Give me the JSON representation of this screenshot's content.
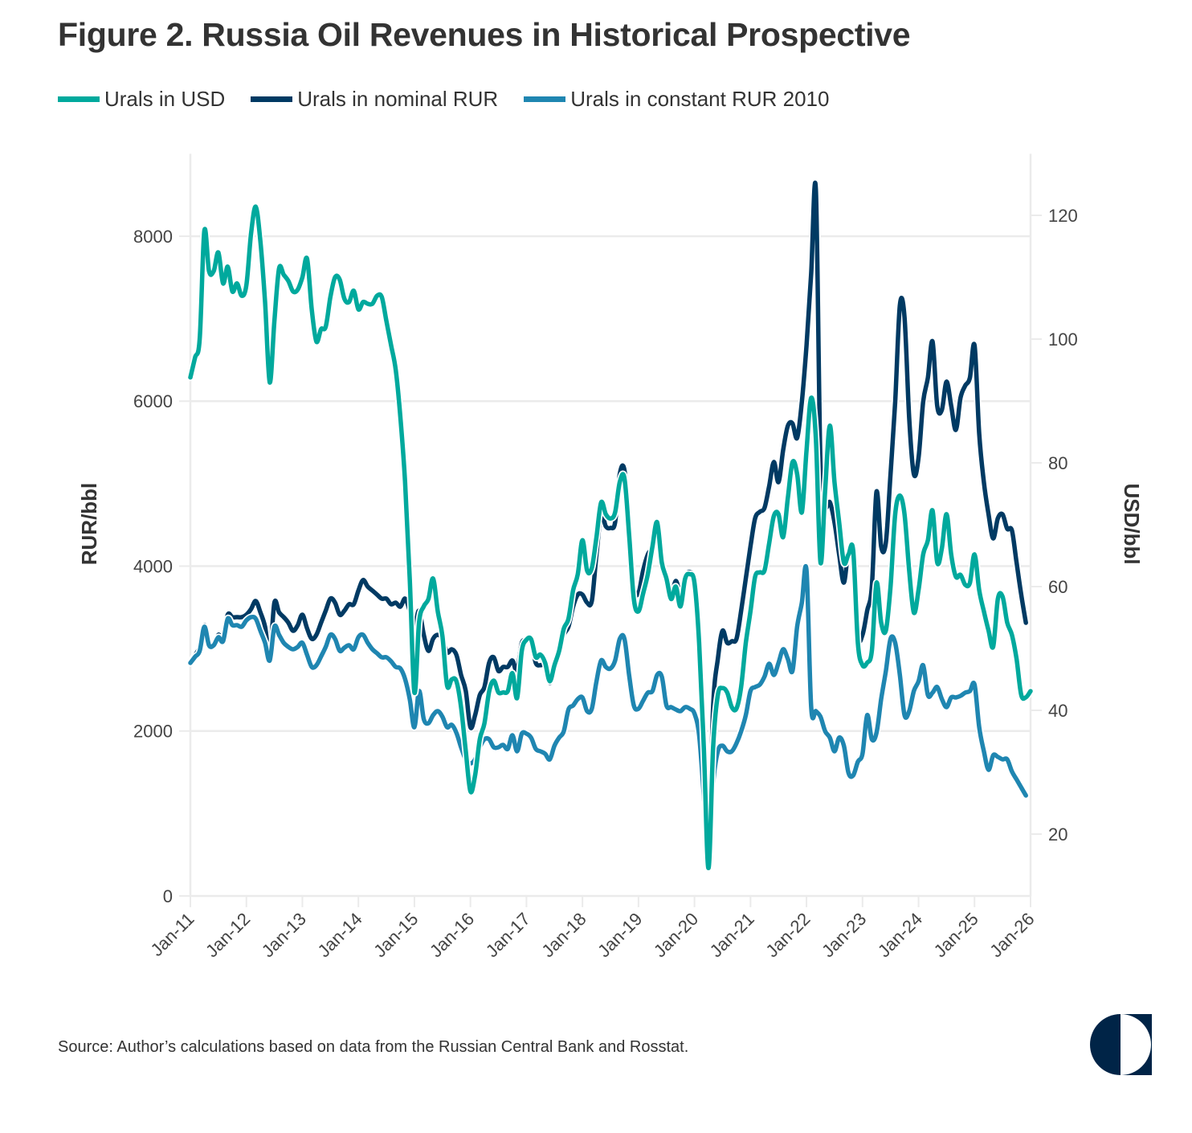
{
  "title": "Figure 2. Russia Oil Revenues in Historical Prospective",
  "source": "Source: Author’s calculations based on data from the Russian Central Bank and Rosstat.",
  "logo": {
    "icon": "half-circle-logo-icon",
    "color": "#002447"
  },
  "chart_data": {
    "type": "line",
    "title": "Figure 2. Russia Oil Revenues in Historical Prospective",
    "xlabel": "",
    "ylabel": "RUR/bbl",
    "ylabel_right": "USD/bbl",
    "ylim": [
      0,
      9000
    ],
    "ylim_right": [
      10,
      128
    ],
    "yticks": [
      0,
      2000,
      4000,
      6000,
      8000
    ],
    "yticks_right": [
      20,
      40,
      60,
      80,
      100,
      120
    ],
    "x_start": "2011-01",
    "x_end": "2026-01",
    "xticks": [
      "Jan-11",
      "Jan-12",
      "Jan-13",
      "Jan-14",
      "Jan-15",
      "Jan-16",
      "Jan-17",
      "Jan-18",
      "Jan-19",
      "Jan-20",
      "Jan-21",
      "Jan-22",
      "Jan-23",
      "Jan-24",
      "Jan-25",
      "Jan-26"
    ],
    "grid": true,
    "legend_position": "top-left",
    "series": [
      {
        "name": "Urals in nominal RUR",
        "axis": "left",
        "color": "#003a63",
        "start": "2011-01",
        "values": [
          2826,
          2920,
          3020,
          3284,
          3069,
          3020,
          3167,
          3118,
          3410,
          3381,
          3381,
          3381,
          3410,
          3478,
          3576,
          3440,
          3264,
          2923,
          3556,
          3440,
          3381,
          3313,
          3215,
          3284,
          3410,
          3245,
          3118,
          3167,
          3313,
          3459,
          3605,
          3556,
          3410,
          3459,
          3537,
          3537,
          3703,
          3830,
          3751,
          3703,
          3654,
          3605,
          3605,
          3537,
          3556,
          3508,
          3605,
          3459,
          3264,
          3459,
          3167,
          2972,
          3118,
          3167,
          3118,
          2952,
          2991,
          2923,
          2680,
          2485,
          2046,
          2192,
          2436,
          2533,
          2826,
          2894,
          2728,
          2777,
          2777,
          2855,
          2728,
          3069,
          3089,
          3089,
          2826,
          2797,
          2797,
          2582,
          2777,
          2952,
          3167,
          3264,
          3508,
          3654,
          3654,
          3556,
          3576,
          4141,
          4628,
          4482,
          4463,
          4531,
          5116,
          5164,
          4531,
          3751,
          3673,
          3946,
          4141,
          4239,
          4531,
          4044,
          3897,
          3654,
          3820,
          3673,
          3868,
          3927,
          3800,
          3069,
          1705,
          438,
          2290,
          2874,
          3215,
          3069,
          3089,
          3118,
          3459,
          3849,
          4239,
          4580,
          4658,
          4706,
          4969,
          5262,
          5018,
          5408,
          5700,
          5729,
          5554,
          5992,
          6675,
          7551,
          8565,
          5213,
          4726,
          4774,
          4531,
          4141,
          3800,
          4190,
          4141,
          3167,
          3167,
          3459,
          3751,
          4901,
          4239,
          4287,
          5116,
          5992,
          7162,
          7016,
          5798,
          5116,
          5310,
          5992,
          6285,
          6723,
          5944,
          5895,
          6236,
          5944,
          5651,
          6041,
          6187,
          6285,
          6675,
          5603,
          5018,
          4628,
          4336,
          4580,
          4628,
          4453,
          4433,
          4044,
          3654,
          3313
        ]
      },
      {
        "name": "Urals in constant RUR 2010",
        "axis": "left",
        "color": "#1f86b1",
        "start": "2011-01",
        "values": [
          2826,
          2900,
          2972,
          3264,
          3040,
          3040,
          3137,
          3089,
          3362,
          3284,
          3284,
          3264,
          3342,
          3381,
          3362,
          3215,
          3069,
          2855,
          3264,
          3167,
          3069,
          3020,
          2991,
          3020,
          3069,
          2923,
          2777,
          2797,
          2904,
          3020,
          3167,
          3118,
          2972,
          3011,
          3040,
          2991,
          3137,
          3167,
          3069,
          2991,
          2943,
          2894,
          2894,
          2845,
          2777,
          2758,
          2631,
          2387,
          2046,
          2485,
          2144,
          2095,
          2192,
          2241,
          2173,
          2046,
          2075,
          1978,
          1803,
          1656,
          1608,
          1656,
          1803,
          1900,
          1900,
          1803,
          1803,
          1832,
          1783,
          1949,
          1754,
          1968,
          1968,
          1920,
          1783,
          1754,
          1725,
          1656,
          1822,
          1920,
          1997,
          2261,
          2309,
          2387,
          2407,
          2241,
          2270,
          2602,
          2855,
          2777,
          2758,
          2855,
          3118,
          3118,
          2680,
          2309,
          2270,
          2368,
          2465,
          2485,
          2680,
          2660,
          2309,
          2290,
          2261,
          2241,
          2290,
          2270,
          2212,
          1949,
          1218,
          487,
          1364,
          1754,
          1822,
          1754,
          1754,
          1851,
          1997,
          2192,
          2485,
          2533,
          2563,
          2660,
          2816,
          2680,
          2826,
          2991,
          2874,
          2728,
          3264,
          3556,
          3946,
          2290,
          2241,
          2173,
          1997,
          1920,
          1754,
          1920,
          1822,
          1491,
          1462,
          1627,
          1725,
          2192,
          1900,
          1978,
          2387,
          2728,
          3118,
          3069,
          2680,
          2192,
          2241,
          2485,
          2602,
          2797,
          2436,
          2465,
          2533,
          2387,
          2290,
          2407,
          2407,
          2426,
          2465,
          2485,
          2563,
          2046,
          1754,
          1530,
          1705,
          1686,
          1656,
          1656,
          1510,
          1413,
          1315,
          1218
        ]
      },
      {
        "name": "Urals in USD",
        "axis": "right",
        "color": "#00a99d",
        "start": "2011-01",
        "values": [
          93.8,
          97,
          100,
          117.5,
          111,
          111,
          114,
          109,
          111.7,
          107.7,
          109,
          107,
          108.7,
          117,
          121.4,
          115.8,
          106,
          93,
          102.9,
          111.4,
          110.4,
          109.4,
          107.7,
          108,
          110,
          113,
          104.8,
          99.6,
          101.6,
          102,
          106.8,
          110,
          109.6,
          106.5,
          106,
          107.8,
          104.8,
          106,
          105.7,
          105.7,
          107,
          106.8,
          102.9,
          99,
          95,
          87.3,
          76.9,
          61.3,
          42.9,
          54.2,
          56.8,
          58,
          61.3,
          56,
          52,
          44,
          45,
          44.7,
          40.5,
          33.4,
          26.9,
          29.5,
          35.3,
          37.9,
          43,
          44.8,
          42.9,
          42.9,
          43.1,
          46,
          42,
          49.6,
          51.4,
          51.5,
          48.6,
          49,
          47.7,
          44.7,
          47.3,
          49.6,
          53.2,
          54.8,
          59.4,
          62,
          67.5,
          62.6,
          63,
          68,
          73.6,
          71.7,
          71,
          72,
          76.9,
          77.5,
          68.4,
          58,
          56,
          58.9,
          62,
          66.5,
          70.4,
          63.9,
          61.3,
          58,
          60,
          56.8,
          61.3,
          62,
          60.6,
          50.9,
          34,
          14.5,
          34,
          42.5,
          43.6,
          42.9,
          40.5,
          40.3,
          43.8,
          50.9,
          56,
          61.6,
          62.3,
          62.6,
          67,
          71.4,
          71.7,
          68,
          74.3,
          80.1,
          78.2,
          72,
          82,
          90.5,
          84,
          63.9,
          75.6,
          86,
          76.9,
          70.4,
          63.9,
          65.2,
          65.8,
          50.9,
          47.3,
          47.7,
          49.6,
          60.6,
          54.2,
          52.9,
          60,
          71.7,
          74.7,
          71.7,
          62.6,
          55.8,
          59.4,
          65.2,
          67.5,
          72.3,
          63.9,
          66.2,
          71.7,
          65.2,
          61.6,
          61.9,
          60.3,
          60.6,
          65.2,
          59.4,
          56,
          52.9,
          50.3,
          58,
          58.4,
          54.2,
          52.2,
          48.3,
          42.5,
          42.1,
          43.1
        ]
      }
    ]
  }
}
